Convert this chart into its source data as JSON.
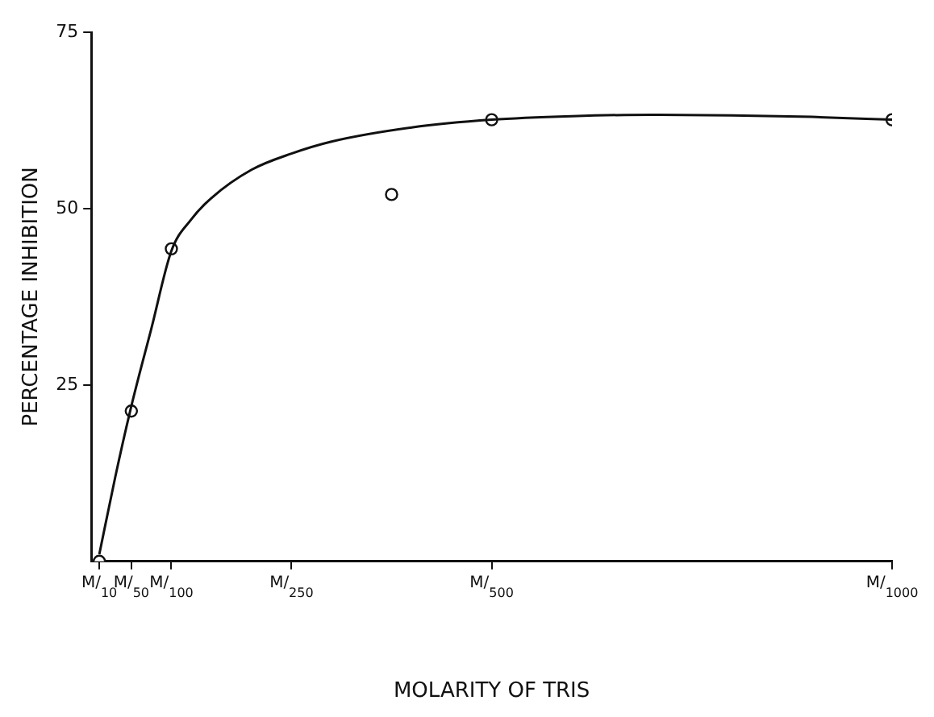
{
  "chart_data": {
    "type": "scatter",
    "xlabel": "MOLARITY OF TRIS",
    "ylabel": "PERCENTAGE INHIBITION",
    "xlim": [
      0,
      1000
    ],
    "ylim": [
      0,
      75
    ],
    "xticks": [
      {
        "value": 10,
        "label": "M/$_{10}$"
      },
      {
        "value": 50,
        "label": "M/$_{50}$"
      },
      {
        "value": 100,
        "label": "M/$_{100}$"
      },
      {
        "value": 250,
        "label": "M/$_{250}$"
      },
      {
        "value": 500,
        "label": "M/$_{500}$"
      },
      {
        "value": 1000,
        "label": "M/$_{1000}$"
      }
    ],
    "yticks": [
      25,
      50,
      75
    ],
    "grid": false,
    "legend": false,
    "series": [
      {
        "type": "line",
        "color": "#111111",
        "marker": "none",
        "line_style": "solid",
        "x": [
          10,
          30,
          50,
          75,
          100,
          125,
          150,
          200,
          250,
          300,
          400,
          500,
          600,
          700,
          800,
          900,
          1000
        ],
        "values": [
          1,
          12,
          22,
          33,
          44,
          48.5,
          51.5,
          55.5,
          57.8,
          59.5,
          61.5,
          62.6,
          63.1,
          63.3,
          63.2,
          63,
          62.6
        ]
      },
      {
        "color": "#111111",
        "marker": "circle",
        "x": [
          10,
          50,
          100,
          375,
          500,
          1000
        ],
        "values": [
          0,
          21.3,
          44.3,
          52,
          62.6,
          62.6
        ]
      }
    ]
  }
}
